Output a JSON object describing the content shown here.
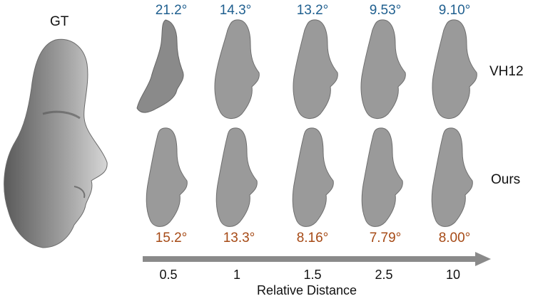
{
  "labels": {
    "gt": "GT",
    "row1": "VH12",
    "row2": "Ours",
    "axis": "Relative Distance"
  },
  "row1_errors": [
    "21.2°",
    "14.3°",
    "13.2°",
    "9.53°",
    "9.10°"
  ],
  "row2_errors": [
    "15.2°",
    "13.3°",
    "8.16°",
    "7.79°",
    "8.00°"
  ],
  "distances": [
    "0.5",
    "1",
    "1.5",
    "2.5",
    "10"
  ],
  "colors": {
    "row1_text": "#1f5f8f",
    "row2_text": "#a64a16",
    "arrow": "#8a8a8a",
    "face": "#9a9a9a"
  }
}
